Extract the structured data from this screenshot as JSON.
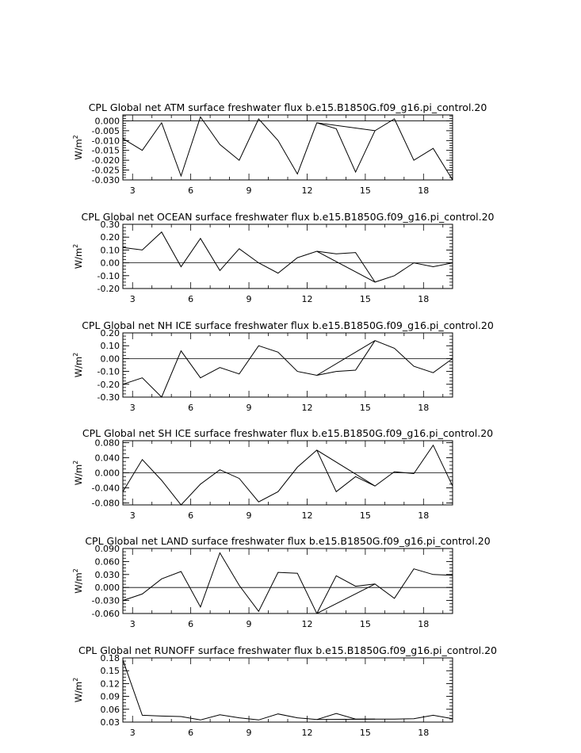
{
  "chart_data": [
    {
      "type": "line",
      "title": "CPL Global net ATM surface freshwater flux b.e15.B1850G.f09_g16.pi_control.20",
      "ylabel": "W/m",
      "ylabel_sup": "2",
      "ylim": [
        -0.03,
        0.003
      ],
      "xlim": [
        2.5,
        19.5
      ],
      "x_ticks": [
        "3",
        "6",
        "9",
        "12",
        "15",
        "18"
      ],
      "y_ticks": [
        "0.000",
        "-0.005",
        "-0.010",
        "-0.015",
        "-0.020",
        "-0.025",
        "-0.030"
      ],
      "y_tick_values": [
        0.0,
        -0.005,
        -0.01,
        -0.015,
        -0.02,
        -0.025,
        -0.03
      ],
      "zero_line": 0,
      "series": [
        {
          "x": [
            2.5,
            3.5,
            4.5,
            5.5,
            6.5,
            7.5,
            8.5,
            9.5,
            10.5,
            11.5,
            12.5,
            15.5,
            16.5,
            17.5,
            18.5,
            19.5
          ],
          "values": [
            -0.009,
            -0.015,
            -0.001,
            -0.028,
            0.002,
            -0.012,
            -0.02,
            0.001,
            -0.01,
            -0.027,
            -0.001,
            -0.005,
            0.001,
            -0.02,
            -0.014,
            -0.03
          ]
        },
        {
          "x": [
            12.5,
            13.5,
            14.5,
            15.5
          ],
          "values": [
            -0.001,
            -0.004,
            -0.026,
            -0.005
          ]
        }
      ]
    },
    {
      "type": "line",
      "title": "CPL Global net OCEAN surface freshwater flux b.e15.B1850G.f09_g16.pi_control.20",
      "ylabel": "W/m",
      "ylabel_sup": "2",
      "ylim": [
        -0.2,
        0.3
      ],
      "xlim": [
        2.5,
        19.5
      ],
      "x_ticks": [
        "3",
        "6",
        "9",
        "12",
        "15",
        "18"
      ],
      "y_ticks": [
        "0.30",
        "0.20",
        "0.10",
        "0.00",
        "-0.10",
        "-0.20"
      ],
      "y_tick_values": [
        0.3,
        0.2,
        0.1,
        0.0,
        -0.1,
        -0.2
      ],
      "zero_line": 0,
      "series": [
        {
          "x": [
            2.5,
            3.5,
            4.5,
            5.5,
            6.5,
            7.5,
            8.5,
            9.5,
            10.5,
            11.5,
            12.5,
            15.5,
            16.5,
            17.5,
            18.5,
            19.5
          ],
          "values": [
            0.12,
            0.1,
            0.24,
            -0.03,
            0.19,
            -0.06,
            0.11,
            0.0,
            -0.08,
            0.04,
            0.09,
            -0.15,
            -0.1,
            0.0,
            -0.03,
            0.0
          ]
        },
        {
          "x": [
            12.5,
            13.5,
            14.5,
            15.5
          ],
          "values": [
            0.09,
            0.07,
            0.08,
            -0.15
          ]
        }
      ]
    },
    {
      "type": "line",
      "title": "CPL Global net NH ICE surface freshwater flux b.e15.B1850G.f09_g16.pi_control.20",
      "ylabel": "W/m",
      "ylabel_sup": "2",
      "ylim": [
        -0.3,
        0.2
      ],
      "xlim": [
        2.5,
        19.5
      ],
      "x_ticks": [
        "3",
        "6",
        "9",
        "12",
        "15",
        "18"
      ],
      "y_ticks": [
        "0.20",
        "0.10",
        "0.00",
        "-0.10",
        "-0.20",
        "-0.30"
      ],
      "y_tick_values": [
        0.2,
        0.1,
        0.0,
        -0.1,
        -0.2,
        -0.3
      ],
      "zero_line": 0,
      "series": [
        {
          "x": [
            2.5,
            3.5,
            4.5,
            5.5,
            6.5,
            7.5,
            8.5,
            9.5,
            10.5,
            11.5,
            12.5,
            15.5,
            16.5,
            17.5,
            18.5,
            19.5
          ],
          "values": [
            -0.2,
            -0.15,
            -0.3,
            0.06,
            -0.15,
            -0.07,
            -0.12,
            0.1,
            0.05,
            -0.1,
            -0.13,
            0.14,
            0.08,
            -0.06,
            -0.11,
            0.0
          ]
        },
        {
          "x": [
            12.5,
            13.5,
            14.5,
            15.5
          ],
          "values": [
            -0.13,
            -0.1,
            -0.09,
            0.14
          ]
        }
      ]
    },
    {
      "type": "line",
      "title": "CPL Global net SH ICE surface freshwater flux b.e15.B1850G.f09_g16.pi_control.20",
      "ylabel": "W/m",
      "ylabel_sup": "2",
      "ylim": [
        -0.085,
        0.085
      ],
      "xlim": [
        2.5,
        19.5
      ],
      "x_ticks": [
        "3",
        "6",
        "9",
        "12",
        "15",
        "18"
      ],
      "y_ticks": [
        "0.080",
        "0.040",
        "0.000",
        "-0.040",
        "-0.080"
      ],
      "y_tick_values": [
        0.08,
        0.04,
        0.0,
        -0.04,
        -0.08
      ],
      "zero_line": 0,
      "series": [
        {
          "x": [
            2.5,
            3.5,
            4.5,
            5.5,
            6.5,
            7.5,
            8.5,
            9.5,
            10.5,
            11.5,
            12.5,
            15.5,
            16.5,
            17.5,
            18.5,
            19.5
          ],
          "values": [
            -0.05,
            0.035,
            -0.02,
            -0.085,
            -0.03,
            0.008,
            -0.015,
            -0.077,
            -0.05,
            0.015,
            0.06,
            -0.035,
            0.003,
            -0.002,
            0.073,
            -0.035
          ]
        },
        {
          "x": [
            12.5,
            13.5,
            14.5,
            15.5
          ],
          "values": [
            0.06,
            -0.05,
            -0.01,
            -0.035
          ]
        }
      ]
    },
    {
      "type": "line",
      "title": "CPL Global net LAND surface freshwater flux b.e15.B1850G.f09_g16.pi_control.20",
      "ylabel": "W/m",
      "ylabel_sup": "2",
      "ylim": [
        -0.06,
        0.09
      ],
      "xlim": [
        2.5,
        19.5
      ],
      "x_ticks": [
        "3",
        "6",
        "9",
        "12",
        "15",
        "18"
      ],
      "y_ticks": [
        "0.090",
        "0.060",
        "0.030",
        "0.000",
        "-0.030",
        "-0.060"
      ],
      "y_tick_values": [
        0.09,
        0.06,
        0.03,
        0.0,
        -0.03,
        -0.06
      ],
      "zero_line": 0,
      "series": [
        {
          "x": [
            2.5,
            3.5,
            4.5,
            5.5,
            6.5,
            7.5,
            8.5,
            9.5,
            10.5,
            11.5,
            12.5,
            15.5,
            16.5,
            17.5,
            18.5,
            19.5
          ],
          "values": [
            -0.03,
            -0.015,
            0.02,
            0.037,
            -0.045,
            0.08,
            0.005,
            -0.055,
            0.035,
            0.033,
            -0.06,
            0.008,
            -0.025,
            0.043,
            0.03,
            0.028
          ]
        },
        {
          "x": [
            12.5,
            13.5,
            14.5,
            15.5
          ],
          "values": [
            -0.06,
            0.027,
            0.003,
            0.008
          ]
        }
      ]
    },
    {
      "type": "line",
      "title": "CPL Global net RUNOFF surface freshwater flux b.e15.B1850G.f09_g16.pi_control.20",
      "ylabel": "W/m",
      "ylabel_sup": "2",
      "ylim": [
        0.03,
        0.18
      ],
      "xlim": [
        2.5,
        19.5
      ],
      "x_ticks": [
        "3",
        "6",
        "9",
        "12",
        "15",
        "18"
      ],
      "y_ticks": [
        "0.18",
        "0.15",
        "0.12",
        "0.09",
        "0.06",
        "0.03"
      ],
      "y_tick_values": [
        0.18,
        0.15,
        0.12,
        0.09,
        0.06,
        0.03
      ],
      "series": [
        {
          "x": [
            2.5,
            3.5,
            4.5,
            5.5,
            6.5,
            7.5,
            8.5,
            9.5,
            10.5,
            11.5,
            12.5,
            15.5,
            16.5,
            17.5,
            18.5,
            19.5
          ],
          "values": [
            0.175,
            0.046,
            0.044,
            0.043,
            0.035,
            0.047,
            0.04,
            0.035,
            0.049,
            0.04,
            0.036,
            0.037,
            0.037,
            0.038,
            0.046,
            0.038
          ]
        },
        {
          "x": [
            12.5,
            13.5,
            14.5,
            15.5
          ],
          "values": [
            0.036,
            0.05,
            0.037,
            0.037
          ]
        }
      ]
    }
  ]
}
